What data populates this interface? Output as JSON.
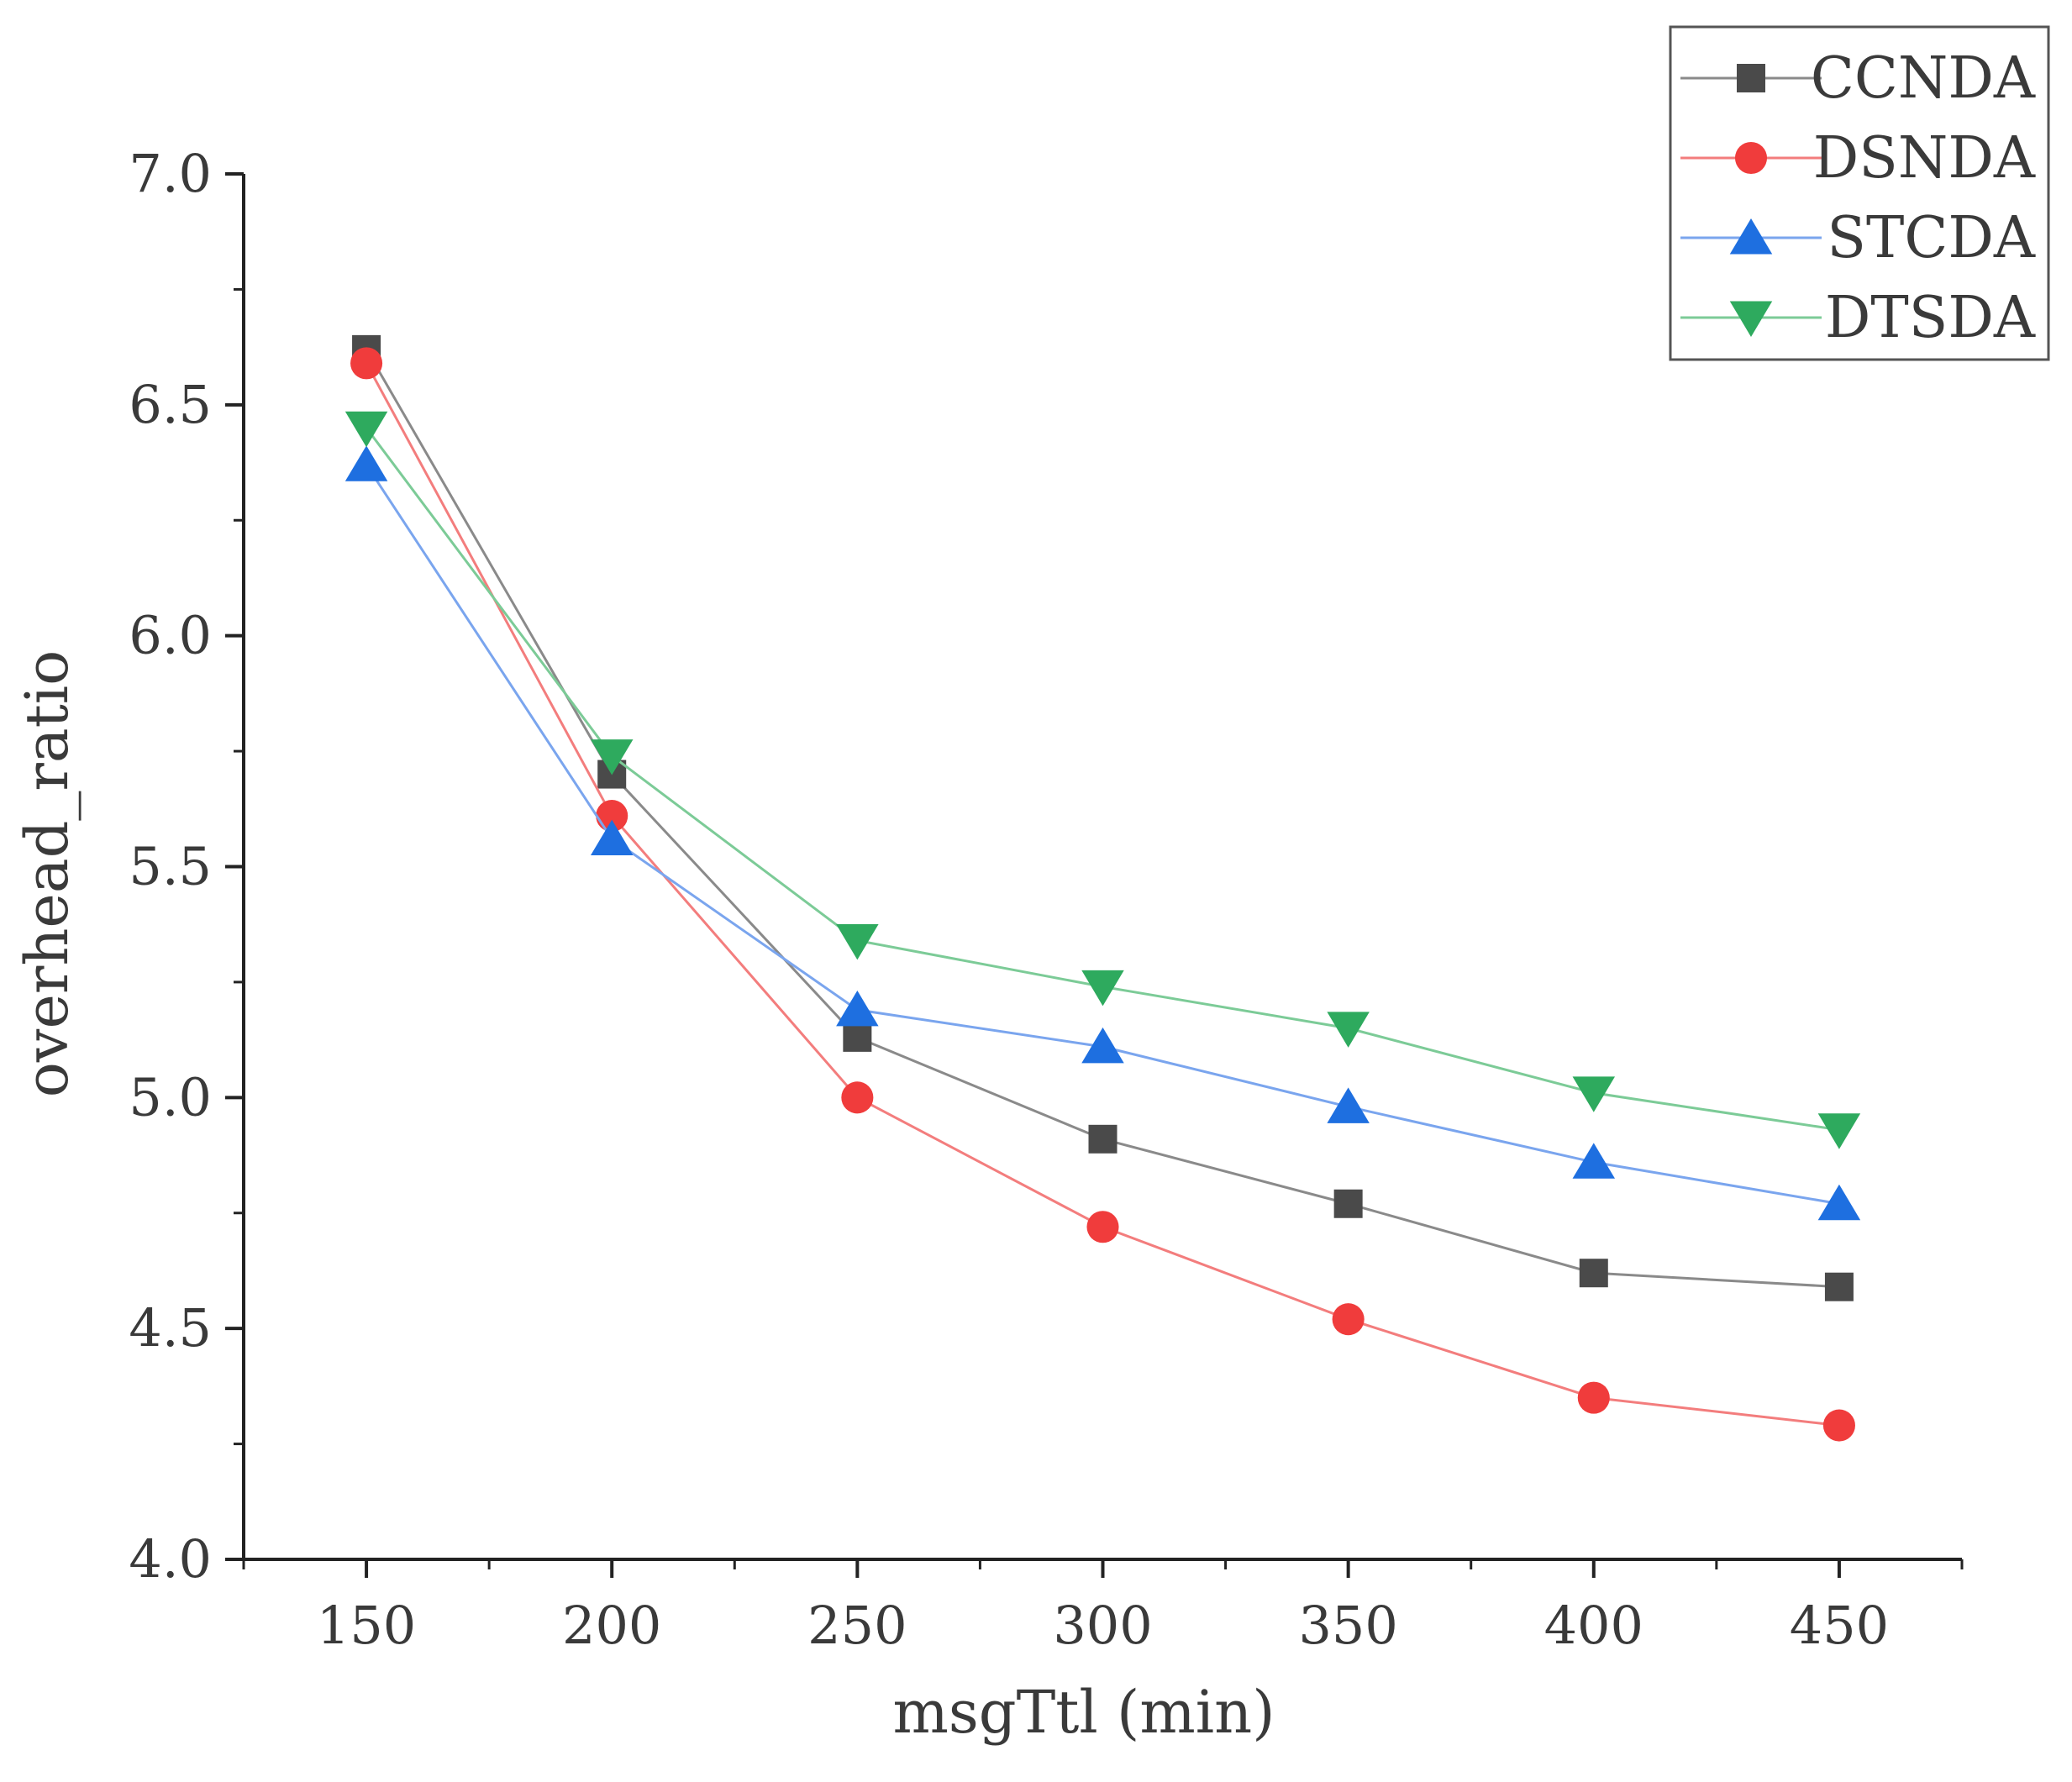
{
  "chart_data": {
    "type": "line",
    "title": "",
    "xlabel": "msgTtl (min)",
    "ylabel": "overhead_ratio",
    "x": [
      150,
      200,
      250,
      300,
      350,
      400,
      450
    ],
    "x_ticks": [
      "150",
      "200",
      "250",
      "300",
      "350",
      "400",
      "450"
    ],
    "xlim": [
      125,
      475
    ],
    "y_ticks": [
      "4.0",
      "4.5",
      "5.0",
      "5.5",
      "6.0",
      "6.5",
      "7.0"
    ],
    "ylim": [
      4.0,
      7.0
    ],
    "grid": false,
    "legend_position": "top-right",
    "series": [
      {
        "name": "CCNDA",
        "marker": "square",
        "color": "#4a4a4a",
        "line_color": "#8a8a8a",
        "values": [
          6.62,
          5.7,
          5.13,
          4.91,
          4.77,
          4.62,
          4.59
        ]
      },
      {
        "name": "DSNDA",
        "marker": "circle",
        "color": "#f03c3c",
        "line_color": "#f37d7d",
        "values": [
          6.59,
          5.61,
          5.0,
          4.72,
          4.52,
          4.35,
          4.29
        ]
      },
      {
        "name": "STCDA",
        "marker": "triangle-up",
        "color": "#1e6fe0",
        "line_color": "#7aa5ee",
        "values": [
          6.37,
          5.56,
          5.19,
          5.11,
          4.98,
          4.86,
          4.77
        ]
      },
      {
        "name": "DTSDA",
        "marker": "triangle-down",
        "color": "#2eaa5e",
        "line_color": "#7ccb97",
        "values": [
          6.45,
          5.74,
          5.34,
          5.24,
          5.15,
          5.01,
          4.93
        ]
      }
    ]
  }
}
